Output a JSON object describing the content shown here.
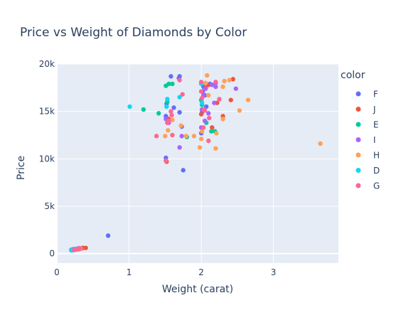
{
  "chart_data": {
    "type": "scatter",
    "title": "Price vs Weight of Diamonds by Color",
    "xlabel": "Weight (carat)",
    "ylabel": "Price",
    "xlim": [
      0,
      3.9
    ],
    "ylim": [
      -1000,
      20000
    ],
    "x_ticks": [
      {
        "value": 0,
        "label": "0"
      },
      {
        "value": 1,
        "label": "1"
      },
      {
        "value": 2,
        "label": "2"
      },
      {
        "value": 3,
        "label": "3"
      }
    ],
    "y_ticks": [
      {
        "value": 0,
        "label": "0"
      },
      {
        "value": 5000,
        "label": "5k"
      },
      {
        "value": 10000,
        "label": "10k"
      },
      {
        "value": 15000,
        "label": "15k"
      },
      {
        "value": 20000,
        "label": "20k"
      }
    ],
    "grid": true,
    "background": "#e5ecf6",
    "legend": {
      "title": "color",
      "placement": "right"
    },
    "series": [
      {
        "name": "F",
        "color": "#636efa",
        "points": [
          [
            0.2,
            400
          ],
          [
            0.24,
            480
          ],
          [
            0.28,
            520
          ],
          [
            0.31,
            560
          ],
          [
            0.36,
            610
          ],
          [
            0.22,
            450
          ],
          [
            0.3,
            540
          ],
          [
            0.71,
            1900
          ],
          [
            1.51,
            10100
          ],
          [
            1.51,
            14500
          ],
          [
            1.52,
            15800
          ],
          [
            1.58,
            18700
          ],
          [
            1.62,
            15400
          ],
          [
            1.69,
            18500
          ],
          [
            1.7,
            18700
          ],
          [
            1.7,
            14900
          ],
          [
            1.73,
            13400
          ],
          [
            1.75,
            8800
          ],
          [
            2.0,
            12700
          ],
          [
            2.01,
            14900
          ],
          [
            2.02,
            17100
          ],
          [
            2.03,
            17600
          ],
          [
            2.05,
            16700
          ],
          [
            2.07,
            15500
          ],
          [
            2.12,
            17900
          ],
          [
            2.2,
            18000
          ]
        ]
      },
      {
        "name": "J",
        "color": "#EF553B",
        "points": [
          [
            0.3,
            500
          ],
          [
            0.35,
            560
          ],
          [
            0.4,
            600
          ],
          [
            0.33,
            540
          ],
          [
            1.52,
            9700
          ],
          [
            1.55,
            14200
          ],
          [
            2.0,
            14700
          ],
          [
            2.06,
            17500
          ],
          [
            2.1,
            17800
          ],
          [
            2.15,
            13300
          ],
          [
            2.22,
            15900
          ],
          [
            2.3,
            14500
          ],
          [
            2.41,
            16200
          ],
          [
            2.44,
            18400
          ]
        ]
      },
      {
        "name": "E",
        "color": "#00cc96",
        "points": [
          [
            0.23,
            380
          ],
          [
            0.25,
            420
          ],
          [
            0.27,
            460
          ],
          [
            0.29,
            500
          ],
          [
            1.2,
            15200
          ],
          [
            1.41,
            14800
          ],
          [
            1.51,
            17700
          ],
          [
            1.55,
            17900
          ],
          [
            1.6,
            17900
          ],
          [
            1.53,
            16000
          ],
          [
            1.8,
            12300
          ],
          [
            2.0,
            16200
          ],
          [
            2.01,
            15700
          ],
          [
            2.07,
            13800
          ],
          [
            2.14,
            12900
          ],
          [
            2.19,
            12900
          ]
        ]
      },
      {
        "name": "I",
        "color": "#ab63fa",
        "points": [
          [
            0.26,
            420
          ],
          [
            0.3,
            470
          ],
          [
            0.32,
            520
          ],
          [
            1.51,
            14200
          ],
          [
            1.55,
            13800
          ],
          [
            1.7,
            11200
          ],
          [
            1.73,
            12400
          ],
          [
            2.0,
            13300
          ],
          [
            2.01,
            15200
          ],
          [
            2.03,
            16700
          ],
          [
            2.05,
            14000
          ],
          [
            2.06,
            17400
          ],
          [
            2.1,
            14800
          ],
          [
            2.15,
            17800
          ],
          [
            2.18,
            15900
          ],
          [
            2.2,
            17600
          ],
          [
            2.48,
            17400
          ]
        ]
      },
      {
        "name": "H",
        "color": "#FFA15A",
        "points": [
          [
            0.25,
            410
          ],
          [
            0.29,
            480
          ],
          [
            0.33,
            540
          ],
          [
            1.5,
            12400
          ],
          [
            1.54,
            13000
          ],
          [
            1.6,
            14100
          ],
          [
            1.72,
            13500
          ],
          [
            1.79,
            12400
          ],
          [
            1.9,
            12400
          ],
          [
            1.98,
            11200
          ],
          [
            2.0,
            12100
          ],
          [
            2.01,
            12900
          ],
          [
            2.06,
            18000
          ],
          [
            2.08,
            18800
          ],
          [
            2.1,
            16700
          ],
          [
            2.2,
            11100
          ],
          [
            2.21,
            12700
          ],
          [
            2.3,
            14200
          ],
          [
            2.3,
            17600
          ],
          [
            2.32,
            18200
          ],
          [
            2.39,
            18300
          ],
          [
            2.53,
            15100
          ],
          [
            2.65,
            16200
          ],
          [
            3.65,
            11600
          ]
        ]
      },
      {
        "name": "D",
        "color": "#19d3f3",
        "points": [
          [
            0.2,
            350
          ],
          [
            0.22,
            390
          ],
          [
            0.24,
            420
          ],
          [
            0.26,
            450
          ],
          [
            0.21,
            370
          ],
          [
            0.23,
            400
          ],
          [
            1.01,
            15500
          ],
          [
            1.52,
            15500
          ],
          [
            1.53,
            16300
          ],
          [
            1.7,
            16500
          ],
          [
            2.0,
            17900
          ],
          [
            2.01,
            15900
          ]
        ]
      },
      {
        "name": "G",
        "color": "#FF6692",
        "points": [
          [
            0.25,
            420
          ],
          [
            0.27,
            450
          ],
          [
            0.28,
            480
          ],
          [
            0.3,
            510
          ],
          [
            0.31,
            530
          ],
          [
            0.29,
            490
          ],
          [
            0.26,
            440
          ],
          [
            0.32,
            550
          ],
          [
            0.24,
            400
          ],
          [
            1.38,
            12400
          ],
          [
            1.51,
            9800
          ],
          [
            1.53,
            13800
          ],
          [
            1.55,
            14000
          ],
          [
            1.58,
            15000
          ],
          [
            1.59,
            14600
          ],
          [
            1.6,
            12500
          ],
          [
            1.7,
            18300
          ],
          [
            1.74,
            16800
          ],
          [
            2.0,
            18100
          ],
          [
            2.0,
            17100
          ],
          [
            2.01,
            16400
          ],
          [
            2.03,
            13300
          ],
          [
            2.04,
            15200
          ],
          [
            2.05,
            15100
          ],
          [
            2.1,
            11900
          ],
          [
            2.11,
            14300
          ],
          [
            2.2,
            18100
          ],
          [
            2.25,
            16300
          ]
        ]
      }
    ]
  }
}
